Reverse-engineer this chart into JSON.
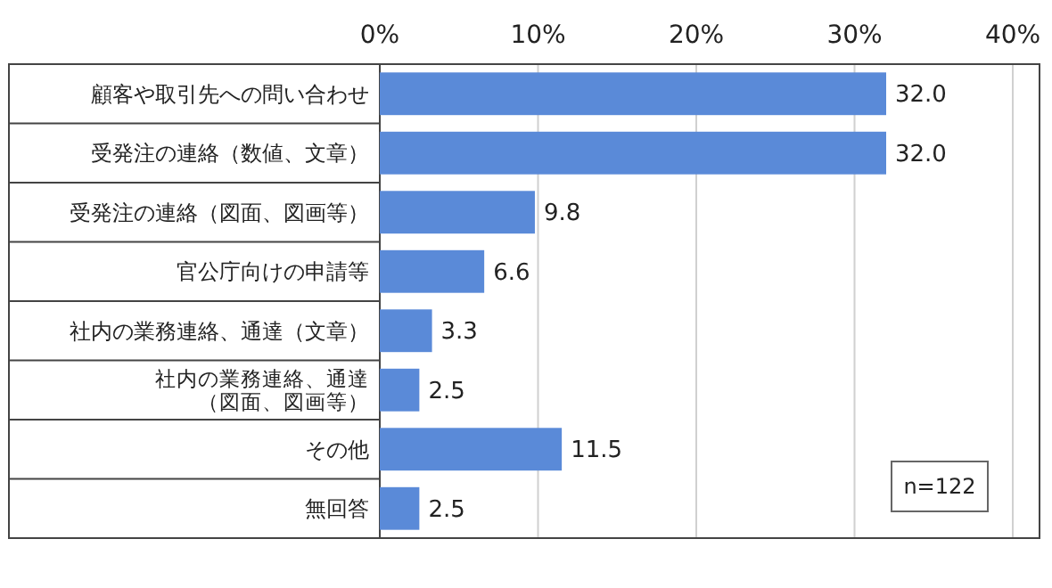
{
  "chart_data": {
    "type": "bar",
    "orientation": "horizontal",
    "categories": [
      "顧客や取引先への問い合わせ",
      "受発注の連絡（数値、文章）",
      "受発注の連絡（図面、図画等）",
      "官公庁向けの申請等",
      "社内の業務連絡、通達（文章）",
      "社内の業務連絡、通達（図面、図画等）",
      "その他",
      "無回答"
    ],
    "values": [
      32.0,
      32.0,
      9.8,
      6.6,
      3.3,
      2.5,
      11.5,
      2.5
    ],
    "value_labels": [
      "32.0",
      "32.0",
      "9.8",
      "6.6",
      "3.3",
      "2.5",
      "11.5",
      "2.5"
    ],
    "color": "#5a8ad8",
    "xlim": [
      0,
      40
    ],
    "xticks": [
      {
        "value": 0,
        "label": "0%"
      },
      {
        "value": 10,
        "label": "10%"
      },
      {
        "value": 20,
        "label": "20%"
      },
      {
        "value": 30,
        "label": "30%"
      },
      {
        "value": 40,
        "label": "40%"
      }
    ],
    "grid": "x",
    "annotations": [
      "n=122"
    ]
  }
}
